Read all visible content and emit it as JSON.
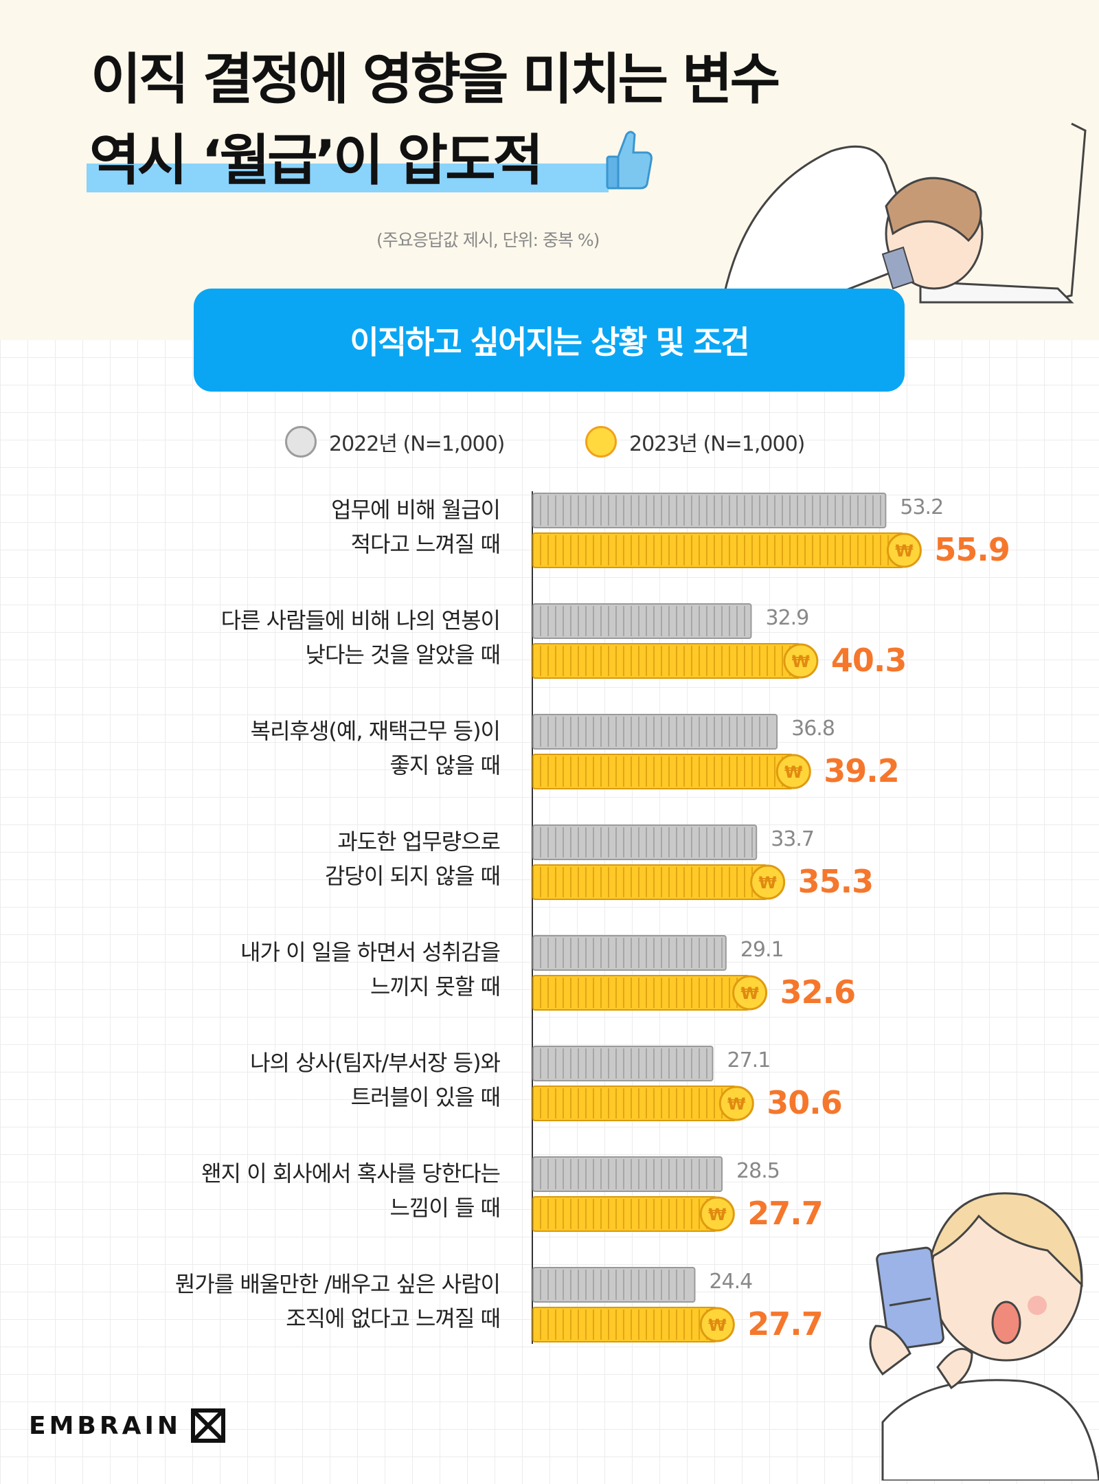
{
  "title_line1": "이직 결정에 영향을 미치는 변수",
  "title_line2": "역시 ‘월급’이 압도적",
  "subtitle": "(주요응답값 제시, 단위: 중복 %)",
  "banner": "이직하고 싶어지는 상황 및 조건",
  "brand": "EMBRAIN",
  "chart_data": {
    "type": "bar",
    "orientation": "horizontal",
    "xlim": [
      0,
      60
    ],
    "categories": [
      "업무에 비해 월급이\n적다고 느껴질 때",
      "다른 사람들에 비해 나의 연봉이\n낮다는 것을 알았을 때",
      "복리후생(예, 재택근무 등)이\n좋지 않을 때",
      "과도한 업무량으로\n감당이 되지 않을 때",
      "내가 이 일을 하면서 성취감을\n느끼지 못할 때",
      "나의 상사(팀자/부서장 등)와\n트러블이 있을 때",
      "왠지 이 회사에서 혹사를 당한다는\n느낌이 들 때",
      "뭔가를 배울만한 /배우고 싶은 사람이\n조직에 없다고 느껴질 때"
    ],
    "series": [
      {
        "name": "2022년 (N=1,000)",
        "color": "#c9c9c9",
        "values": [
          53.2,
          32.9,
          36.8,
          33.7,
          29.1,
          27.1,
          28.5,
          24.4
        ],
        "labels": [
          "53.2",
          "32.9",
          "36.8",
          "33.7",
          "29.1",
          "27.1",
          "28.5",
          "24.4"
        ]
      },
      {
        "name": "2023년 (N=1,000)",
        "color": "#ffc928",
        "values": [
          55.9,
          40.3,
          39.2,
          35.3,
          32.6,
          30.6,
          27.7,
          27.7
        ],
        "labels": [
          "55.9",
          "40.3",
          "39.2",
          "35.3",
          "32.6",
          "30.6",
          "27.7",
          "27.7"
        ]
      }
    ],
    "coin_symbol": "₩",
    "label_colors": {
      "2022": "#888888",
      "2023": "#f5772c"
    }
  }
}
